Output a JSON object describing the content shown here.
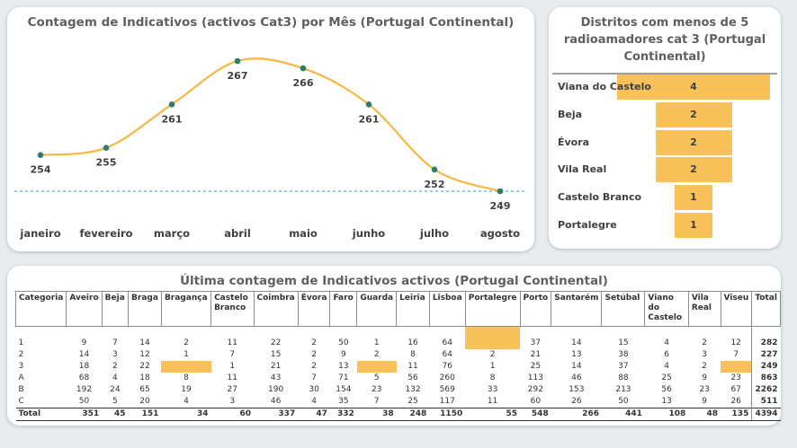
{
  "line_card": {
    "title": "Contagem de Indicativos (activos Cat3) por Mês (Portugal Continental)"
  },
  "funnel_card": {
    "title": "Distritos com menos de 5 radioamadores cat 3 (Portugal Continental)"
  },
  "table_card": {
    "title": "Última contagem de Indicativos activos (Portugal Continental)"
  },
  "colors": {
    "line": "#f5b942",
    "marker": "#2e7d6b",
    "bar": "#f8c15a",
    "ref_line": "#7fb8c4"
  },
  "chart_data": [
    {
      "type": "line",
      "title": "Contagem de Indicativos (activos Cat3) por Mês (Portugal Continental)",
      "categories": [
        "janeiro",
        "fevereiro",
        "março",
        "abril",
        "maio",
        "junho",
        "julho",
        "agosto"
      ],
      "values": [
        254,
        255,
        261,
        267,
        266,
        261,
        252,
        249
      ],
      "reference_line": 249
    },
    {
      "type": "bar",
      "title": "Distritos com menos de 5 radioamadores cat 3 (Portugal Continental)",
      "categories": [
        "Viana do Castelo",
        "Beja",
        "Évora",
        "Vila Real",
        "Castelo Branco",
        "Portalegre"
      ],
      "values": [
        4,
        2,
        2,
        2,
        1,
        1
      ]
    },
    {
      "type": "table",
      "title": "Última contagem de Indicativos activos (Portugal Continental)",
      "columns": [
        "Categoria",
        "Aveiro",
        "Beja",
        "Braga",
        "Bragança",
        "Castelo Branco",
        "Coimbra",
        "Évora",
        "Faro",
        "Guarda",
        "Leiria",
        "Lisboa",
        "Portalegre",
        "Porto",
        "Santarém",
        "Setúbal",
        "Viano do Castelo",
        "Vila Real",
        "Viseu",
        "Total"
      ],
      "rows": [
        [
          "1",
          "9",
          "7",
          "14",
          "2",
          "11",
          "22",
          "2",
          "50",
          "1",
          "16",
          "64",
          "",
          "37",
          "14",
          "15",
          "4",
          "2",
          "12",
          "282"
        ],
        [
          "2",
          "14",
          "3",
          "12",
          "1",
          "7",
          "15",
          "2",
          "9",
          "2",
          "8",
          "64",
          "2",
          "21",
          "13",
          "38",
          "6",
          "3",
          "7",
          "227"
        ],
        [
          "3",
          "18",
          "2",
          "22",
          "",
          "1",
          "21",
          "2",
          "13",
          "",
          "11",
          "76",
          "1",
          "25",
          "14",
          "37",
          "4",
          "2",
          "",
          "249"
        ],
        [
          "A",
          "68",
          "4",
          "18",
          "8",
          "11",
          "43",
          "7",
          "71",
          "5",
          "56",
          "260",
          "8",
          "113",
          "46",
          "88",
          "25",
          "9",
          "23",
          "863"
        ],
        [
          "B",
          "192",
          "24",
          "65",
          "19",
          "27",
          "190",
          "30",
          "154",
          "23",
          "132",
          "569",
          "33",
          "292",
          "153",
          "213",
          "56",
          "23",
          "67",
          "2262"
        ],
        [
          "C",
          "50",
          "5",
          "20",
          "4",
          "3",
          "46",
          "4",
          "35",
          "7",
          "25",
          "117",
          "11",
          "60",
          "26",
          "50",
          "13",
          "9",
          "26",
          "511"
        ]
      ],
      "total_row": [
        "Total",
        "351",
        "45",
        "151",
        "34",
        "60",
        "337",
        "47",
        "332",
        "38",
        "248",
        "1150",
        "55",
        "548",
        "266",
        "441",
        "108",
        "48",
        "135",
        "4394"
      ]
    }
  ]
}
